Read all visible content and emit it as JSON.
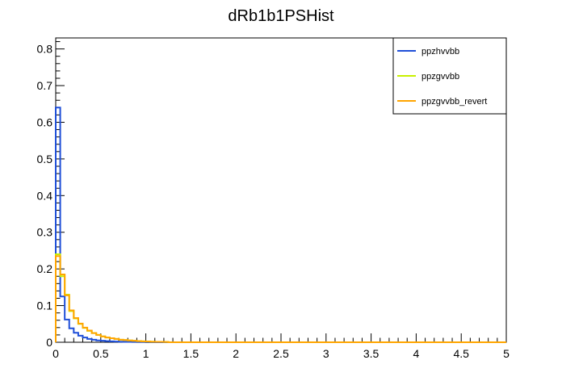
{
  "chart_data": {
    "type": "line",
    "title": "dRb1b1PSHist",
    "xlabel": "",
    "ylabel": "",
    "xlim": [
      0,
      5
    ],
    "ylim": [
      0,
      0.83
    ],
    "x_ticks": [
      "0",
      "0.5",
      "1",
      "1.5",
      "2",
      "2.5",
      "3",
      "3.5",
      "4",
      "4.5",
      "5"
    ],
    "y_ticks": [
      "0",
      "0.1",
      "0.2",
      "0.3",
      "0.4",
      "0.5",
      "0.6",
      "0.7",
      "0.8"
    ],
    "bin_width": 0.05,
    "grid": false,
    "legend_position": "top-right",
    "series": [
      {
        "name": "ppzhvvbb",
        "color": "#1f4fd8",
        "values": [
          0.64,
          0.125,
          0.062,
          0.038,
          0.026,
          0.018,
          0.013,
          0.009,
          0.007,
          0.005,
          0.004,
          0.003,
          0.0025,
          0.002,
          0.0015,
          0.001,
          0.001,
          0.0008,
          0.0006,
          0.0005
        ]
      },
      {
        "name": "ppzgvvbb",
        "color": "#c8f000",
        "values": [
          0.24,
          0.18,
          0.13,
          0.085,
          0.065,
          0.05,
          0.039,
          0.031,
          0.025,
          0.02,
          0.016,
          0.013,
          0.011,
          0.009,
          0.007,
          0.006,
          0.005,
          0.004,
          0.003,
          0.0025,
          0.002,
          0.0015,
          0.0012,
          0.001,
          0.0008
        ]
      },
      {
        "name": "ppzgvvbb_revert",
        "color": "#ffa500",
        "values": [
          0.235,
          0.185,
          0.128,
          0.087,
          0.066,
          0.051,
          0.04,
          0.032,
          0.025,
          0.02,
          0.016,
          0.013,
          0.011,
          0.009,
          0.007,
          0.006,
          0.005,
          0.004,
          0.003,
          0.0025,
          0.002,
          0.0015,
          0.0012,
          0.001,
          0.0008
        ]
      }
    ]
  }
}
